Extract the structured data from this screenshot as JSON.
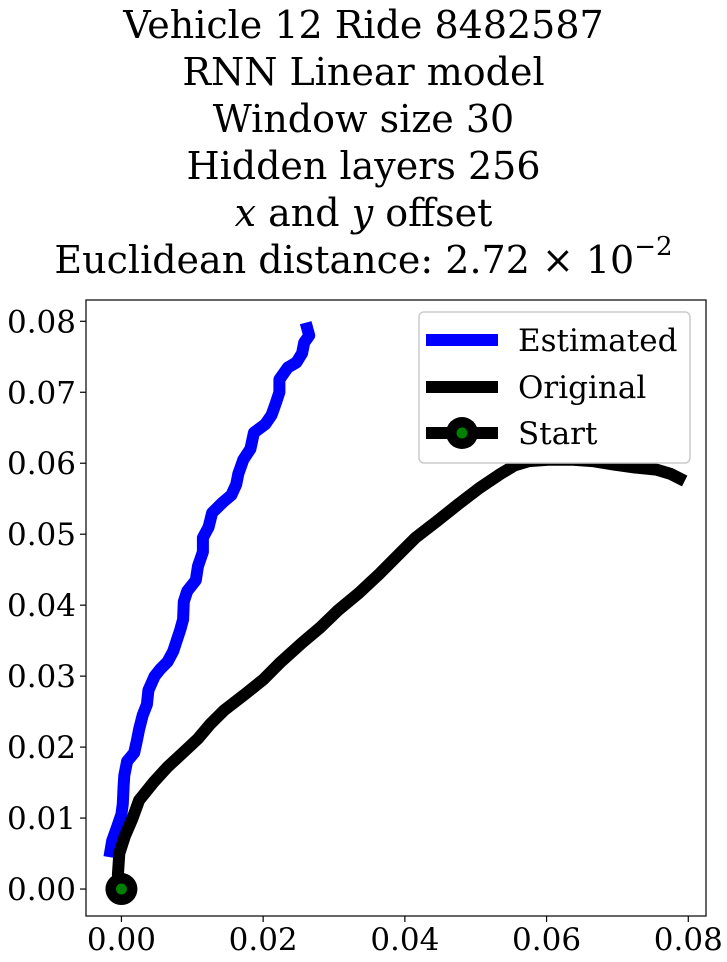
{
  "title": {
    "line1": "Vehicle 12 Ride 8482587",
    "line2": "RNN Linear model",
    "line3": "Window size 30",
    "line4": "Hidden layers 256",
    "line5_x": "x",
    "line5_and": " and ",
    "line5_y": "y",
    "line5_rest": " offset",
    "line6_text": "Euclidean distance: 2.72 × 10",
    "line6_exp": "−2"
  },
  "chart_data": {
    "type": "line",
    "title": "Vehicle 12 Ride 8482587 / RNN Linear model / Window size 30 / Hidden layers 256 / x and y offset / Euclidean distance: 2.72 × 10^-2",
    "xlabel": "",
    "ylabel": "",
    "xlim": [
      -0.005,
      0.0825
    ],
    "ylim": [
      -0.0038,
      0.083
    ],
    "grid": false,
    "legend_position": "top-right",
    "x_ticks": [
      "0.00",
      "0.02",
      "0.04",
      "0.06",
      "0.08"
    ],
    "y_ticks": [
      "0.00",
      "0.01",
      "0.02",
      "0.03",
      "0.04",
      "0.05",
      "0.06",
      "0.07",
      "0.08"
    ],
    "series": [
      {
        "name": "Estimated",
        "color": "#0000ff",
        "points": [
          [
            -0.0017,
            0.0045
          ],
          [
            -0.0013,
            0.0068
          ],
          [
            -0.0007,
            0.0085
          ],
          [
            0.0,
            0.0105
          ],
          [
            0.0002,
            0.012
          ],
          [
            0.0003,
            0.0145
          ],
          [
            0.0004,
            0.016
          ],
          [
            0.0008,
            0.018
          ],
          [
            0.0018,
            0.0192
          ],
          [
            0.0022,
            0.021
          ],
          [
            0.0025,
            0.0225
          ],
          [
            0.003,
            0.0245
          ],
          [
            0.0036,
            0.026
          ],
          [
            0.0038,
            0.028
          ],
          [
            0.0047,
            0.03
          ],
          [
            0.0055,
            0.031
          ],
          [
            0.0065,
            0.032
          ],
          [
            0.0073,
            0.0335
          ],
          [
            0.0078,
            0.035
          ],
          [
            0.0083,
            0.0365
          ],
          [
            0.0087,
            0.038
          ],
          [
            0.0088,
            0.0405
          ],
          [
            0.0093,
            0.042
          ],
          [
            0.0105,
            0.0435
          ],
          [
            0.0108,
            0.0455
          ],
          [
            0.0115,
            0.0475
          ],
          [
            0.0115,
            0.0495
          ],
          [
            0.0123,
            0.051
          ],
          [
            0.0128,
            0.053
          ],
          [
            0.0143,
            0.0545
          ],
          [
            0.0155,
            0.0555
          ],
          [
            0.0162,
            0.057
          ],
          [
            0.0165,
            0.0585
          ],
          [
            0.0172,
            0.0605
          ],
          [
            0.0182,
            0.062
          ],
          [
            0.0187,
            0.0643
          ],
          [
            0.0203,
            0.0655
          ],
          [
            0.0212,
            0.0668
          ],
          [
            0.0218,
            0.0685
          ],
          [
            0.0223,
            0.07
          ],
          [
            0.0223,
            0.0718
          ],
          [
            0.0235,
            0.0735
          ],
          [
            0.0247,
            0.0742
          ],
          [
            0.0255,
            0.0755
          ],
          [
            0.0258,
            0.077
          ],
          [
            0.0265,
            0.078
          ],
          [
            0.026,
            0.0798
          ]
        ]
      },
      {
        "name": "Original",
        "color": "#000000",
        "points": [
          [
            0.0,
            0.0
          ],
          [
            -0.0005,
            0.002
          ],
          [
            -0.0003,
            0.005
          ],
          [
            0.0005,
            0.0075
          ],
          [
            0.0015,
            0.0098
          ],
          [
            0.0025,
            0.0125
          ],
          [
            0.0045,
            0.015
          ],
          [
            0.0065,
            0.0172
          ],
          [
            0.009,
            0.0195
          ],
          [
            0.0108,
            0.0212
          ],
          [
            0.0125,
            0.0232
          ],
          [
            0.0145,
            0.0252
          ],
          [
            0.0175,
            0.0275
          ],
          [
            0.02,
            0.0295
          ],
          [
            0.0225,
            0.032
          ],
          [
            0.0255,
            0.0347
          ],
          [
            0.028,
            0.0368
          ],
          [
            0.0305,
            0.0392
          ],
          [
            0.0335,
            0.0417
          ],
          [
            0.0365,
            0.0445
          ],
          [
            0.0395,
            0.0475
          ],
          [
            0.0415,
            0.0495
          ],
          [
            0.0445,
            0.0518
          ],
          [
            0.0475,
            0.0542
          ],
          [
            0.0505,
            0.0565
          ],
          [
            0.0535,
            0.0585
          ],
          [
            0.0555,
            0.0597
          ],
          [
            0.0575,
            0.0603
          ],
          [
            0.0605,
            0.0605
          ],
          [
            0.0635,
            0.0605
          ],
          [
            0.0665,
            0.0603
          ],
          [
            0.0695,
            0.0598
          ],
          [
            0.0725,
            0.0594
          ],
          [
            0.0755,
            0.0591
          ],
          [
            0.0775,
            0.0585
          ],
          [
            0.0795,
            0.0575
          ]
        ]
      },
      {
        "name": "Start",
        "color": "#000000",
        "marker_face": "#008000",
        "points": [
          [
            0.0,
            0.0
          ]
        ]
      }
    ]
  }
}
